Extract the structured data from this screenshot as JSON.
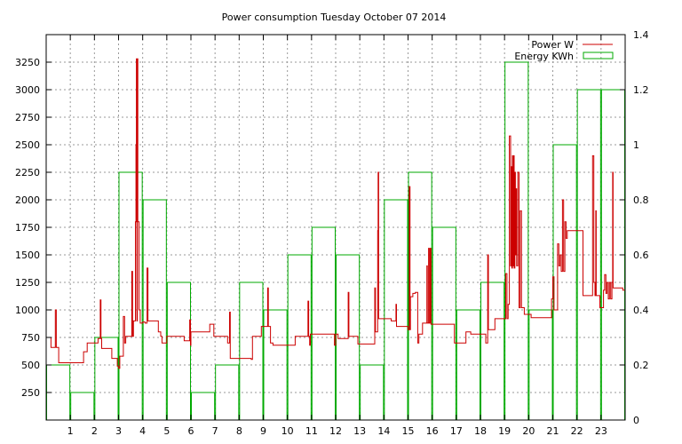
{
  "chart_data": {
    "type": "bar+line",
    "title": "Power consumption Tuesday October 07 2014",
    "x_ticks": [
      "1",
      "2",
      "3",
      "4",
      "5",
      "6",
      "7",
      "8",
      "9",
      "10",
      "11",
      "12",
      "13",
      "14",
      "15",
      "16",
      "17",
      "18",
      "19",
      "20",
      "21",
      "22",
      "23"
    ],
    "xlim": [
      0,
      24
    ],
    "y_left": {
      "ticks": [
        "250",
        "500",
        "750",
        "1000",
        "1250",
        "1500",
        "1750",
        "2000",
        "2250",
        "2500",
        "2750",
        "3000",
        "3250"
      ],
      "lim": [
        0,
        3500
      ]
    },
    "y_right": {
      "ticks": [
        "0",
        "0.2",
        "0.4",
        "0.6",
        "0.8",
        "1",
        "1.2",
        "1.4"
      ],
      "lim": [
        0,
        1.4
      ]
    },
    "grid": true,
    "legend_position": "top-right",
    "series": [
      {
        "name": "Power W",
        "type": "line",
        "axis": "left",
        "color": "#cc0000",
        "points": [
          [
            0,
            750
          ],
          [
            0.1,
            750
          ],
          [
            0.2,
            660
          ],
          [
            0.35,
            660
          ],
          [
            0.38,
            1000
          ],
          [
            0.42,
            660
          ],
          [
            0.5,
            660
          ],
          [
            0.52,
            520
          ],
          [
            1.2,
            520
          ],
          [
            1.5,
            520
          ],
          [
            1.55,
            620
          ],
          [
            1.65,
            620
          ],
          [
            1.7,
            700
          ],
          [
            2.1,
            700
          ],
          [
            2.15,
            740
          ],
          [
            2.22,
            740
          ],
          [
            2.24,
            1090
          ],
          [
            2.27,
            740
          ],
          [
            2.3,
            650
          ],
          [
            2.7,
            650
          ],
          [
            2.72,
            560
          ],
          [
            2.9,
            560
          ],
          [
            2.95,
            490
          ],
          [
            3.0,
            470
          ],
          [
            3.05,
            580
          ],
          [
            3.15,
            580
          ],
          [
            3.2,
            940
          ],
          [
            3.25,
            700
          ],
          [
            3.3,
            760
          ],
          [
            3.5,
            760
          ],
          [
            3.55,
            1350
          ],
          [
            3.58,
            760
          ],
          [
            3.62,
            900
          ],
          [
            3.7,
            1800
          ],
          [
            3.72,
            2500
          ],
          [
            3.74,
            3280
          ],
          [
            3.76,
            900
          ],
          [
            3.78,
            3280
          ],
          [
            3.8,
            1800
          ],
          [
            3.85,
            1000
          ],
          [
            3.9,
            880
          ],
          [
            4.0,
            890
          ],
          [
            4.1,
            880
          ],
          [
            4.18,
            1380
          ],
          [
            4.22,
            900
          ],
          [
            4.6,
            900
          ],
          [
            4.65,
            800
          ],
          [
            4.75,
            760
          ],
          [
            4.8,
            700
          ],
          [
            4.95,
            700
          ],
          [
            5.0,
            760
          ],
          [
            5.5,
            760
          ],
          [
            5.7,
            760
          ],
          [
            5.72,
            720
          ],
          [
            5.9,
            720
          ],
          [
            5.95,
            910
          ],
          [
            5.98,
            680
          ],
          [
            6.0,
            800
          ],
          [
            6.3,
            800
          ],
          [
            6.5,
            800
          ],
          [
            6.75,
            800
          ],
          [
            6.78,
            870
          ],
          [
            6.9,
            870
          ],
          [
            6.95,
            760
          ],
          [
            7.3,
            760
          ],
          [
            7.5,
            760
          ],
          [
            7.52,
            700
          ],
          [
            7.58,
            700
          ],
          [
            7.6,
            980
          ],
          [
            7.63,
            560
          ],
          [
            8.0,
            560
          ],
          [
            8.5,
            550
          ],
          [
            8.55,
            760
          ],
          [
            8.9,
            760
          ],
          [
            8.92,
            850
          ],
          [
            9.15,
            850
          ],
          [
            9.18,
            1200
          ],
          [
            9.21,
            850
          ],
          [
            9.3,
            700
          ],
          [
            9.4,
            680
          ],
          [
            10.0,
            680
          ],
          [
            10.3,
            680
          ],
          [
            10.32,
            760
          ],
          [
            10.8,
            760
          ],
          [
            10.85,
            1080
          ],
          [
            10.88,
            760
          ],
          [
            10.92,
            680
          ],
          [
            10.95,
            780
          ],
          [
            11.3,
            780
          ],
          [
            11.9,
            780
          ],
          [
            11.95,
            680
          ],
          [
            12.0,
            780
          ],
          [
            12.1,
            740
          ],
          [
            12.5,
            740
          ],
          [
            12.52,
            1160
          ],
          [
            12.55,
            760
          ],
          [
            12.9,
            760
          ],
          [
            12.92,
            690
          ],
          [
            13.5,
            690
          ],
          [
            13.6,
            690
          ],
          [
            13.62,
            1200
          ],
          [
            13.65,
            800
          ],
          [
            13.72,
            800
          ],
          [
            13.74,
            1720
          ],
          [
            13.76,
            2250
          ],
          [
            13.78,
            920
          ],
          [
            14.2,
            920
          ],
          [
            14.3,
            900
          ],
          [
            14.48,
            900
          ],
          [
            14.5,
            1050
          ],
          [
            14.52,
            850
          ],
          [
            14.7,
            850
          ],
          [
            14.95,
            850
          ],
          [
            15.0,
            820
          ],
          [
            15.05,
            2120
          ],
          [
            15.08,
            820
          ],
          [
            15.1,
            1120
          ],
          [
            15.2,
            1150
          ],
          [
            15.3,
            1160
          ],
          [
            15.4,
            700
          ],
          [
            15.45,
            780
          ],
          [
            15.55,
            780
          ],
          [
            15.6,
            880
          ],
          [
            15.75,
            880
          ],
          [
            15.78,
            1400
          ],
          [
            15.8,
            880
          ],
          [
            15.85,
            1560
          ],
          [
            15.88,
            880
          ],
          [
            15.92,
            1560
          ],
          [
            15.95,
            870
          ],
          [
            16.3,
            870
          ],
          [
            16.5,
            870
          ],
          [
            16.8,
            870
          ],
          [
            16.9,
            870
          ],
          [
            16.92,
            700
          ],
          [
            17.35,
            700
          ],
          [
            17.4,
            800
          ],
          [
            17.55,
            800
          ],
          [
            17.6,
            780
          ],
          [
            17.95,
            780
          ],
          [
            18.2,
            780
          ],
          [
            18.22,
            700
          ],
          [
            18.28,
            700
          ],
          [
            18.3,
            1500
          ],
          [
            18.33,
            820
          ],
          [
            18.55,
            820
          ],
          [
            18.6,
            920
          ],
          [
            18.9,
            920
          ],
          [
            19.0,
            920
          ],
          [
            19.05,
            1330
          ],
          [
            19.1,
            920
          ],
          [
            19.15,
            1050
          ],
          [
            19.2,
            2580
          ],
          [
            19.25,
            1400
          ],
          [
            19.28,
            2300
          ],
          [
            19.3,
            1380
          ],
          [
            19.33,
            2400
          ],
          [
            19.35,
            1400
          ],
          [
            19.38,
            2400
          ],
          [
            19.4,
            1380
          ],
          [
            19.43,
            2250
          ],
          [
            19.45,
            1500
          ],
          [
            19.47,
            2100
          ],
          [
            19.5,
            1400
          ],
          [
            19.55,
            2250
          ],
          [
            19.6,
            1020
          ],
          [
            19.65,
            1900
          ],
          [
            19.7,
            1020
          ],
          [
            19.8,
            1020
          ],
          [
            19.82,
            960
          ],
          [
            20.0,
            960
          ],
          [
            20.1,
            930
          ],
          [
            20.5,
            930
          ],
          [
            20.9,
            930
          ],
          [
            20.95,
            1100
          ],
          [
            21.0,
            1300
          ],
          [
            21.05,
            1000
          ],
          [
            21.15,
            1000
          ],
          [
            21.2,
            1600
          ],
          [
            21.25,
            1400
          ],
          [
            21.3,
            1500
          ],
          [
            21.35,
            1350
          ],
          [
            21.4,
            2000
          ],
          [
            21.45,
            1350
          ],
          [
            21.5,
            1800
          ],
          [
            21.55,
            1650
          ],
          [
            21.6,
            1720
          ],
          [
            22.0,
            1720
          ],
          [
            22.2,
            1720
          ],
          [
            22.25,
            1130
          ],
          [
            22.6,
            1130
          ],
          [
            22.65,
            2400
          ],
          [
            22.7,
            1250
          ],
          [
            22.75,
            1130
          ],
          [
            22.78,
            1900
          ],
          [
            22.8,
            1130
          ],
          [
            22.9,
            1130
          ],
          [
            22.95,
            1020
          ],
          [
            23.05,
            1020
          ],
          [
            23.1,
            1180
          ],
          [
            23.15,
            1320
          ],
          [
            23.2,
            1150
          ],
          [
            23.25,
            1250
          ],
          [
            23.3,
            1100
          ],
          [
            23.35,
            1250
          ],
          [
            23.4,
            1100
          ],
          [
            23.45,
            1250
          ],
          [
            23.48,
            2250
          ],
          [
            23.5,
            1200
          ],
          [
            23.6,
            1200
          ],
          [
            23.9,
            1180
          ],
          [
            24,
            1180
          ]
        ]
      },
      {
        "name": "Energy KWh",
        "type": "bar",
        "axis": "right",
        "color": "#00aa00",
        "values": [
          0.2,
          0.1,
          0.3,
          0.9,
          0.8,
          0.5,
          0.1,
          0.2,
          0.5,
          0.4,
          0.6,
          0.7,
          0.6,
          0.2,
          0.8,
          0.9,
          0.7,
          0.4,
          0.5,
          1.3,
          0.4,
          1.0,
          1.2,
          1.2
        ]
      }
    ]
  }
}
